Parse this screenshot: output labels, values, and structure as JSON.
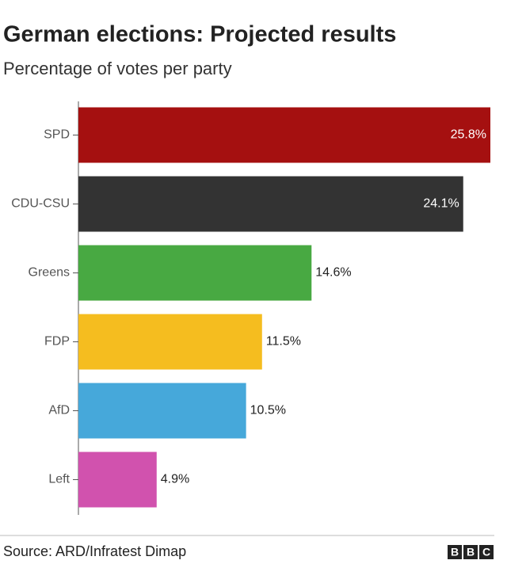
{
  "chart_data": {
    "type": "hbar",
    "title": "German elections: Projected results",
    "subtitle": "Percentage of votes per party",
    "categories": [
      "SPD",
      "CDU-CSU",
      "Greens",
      "FDP",
      "AfD",
      "Left"
    ],
    "values": [
      25.8,
      24.1,
      14.6,
      11.5,
      10.5,
      4.9
    ],
    "value_labels": [
      "25.8%",
      "24.1%",
      "14.6%",
      "11.5%",
      "10.5%",
      "4.9%"
    ],
    "colors": [
      "#a51010",
      "#333333",
      "#48a942",
      "#f5bd1f",
      "#46a8da",
      "#d152ae"
    ],
    "source": "Source: ARD/Infratest Dimap",
    "logo": [
      "B",
      "B",
      "C"
    ]
  }
}
